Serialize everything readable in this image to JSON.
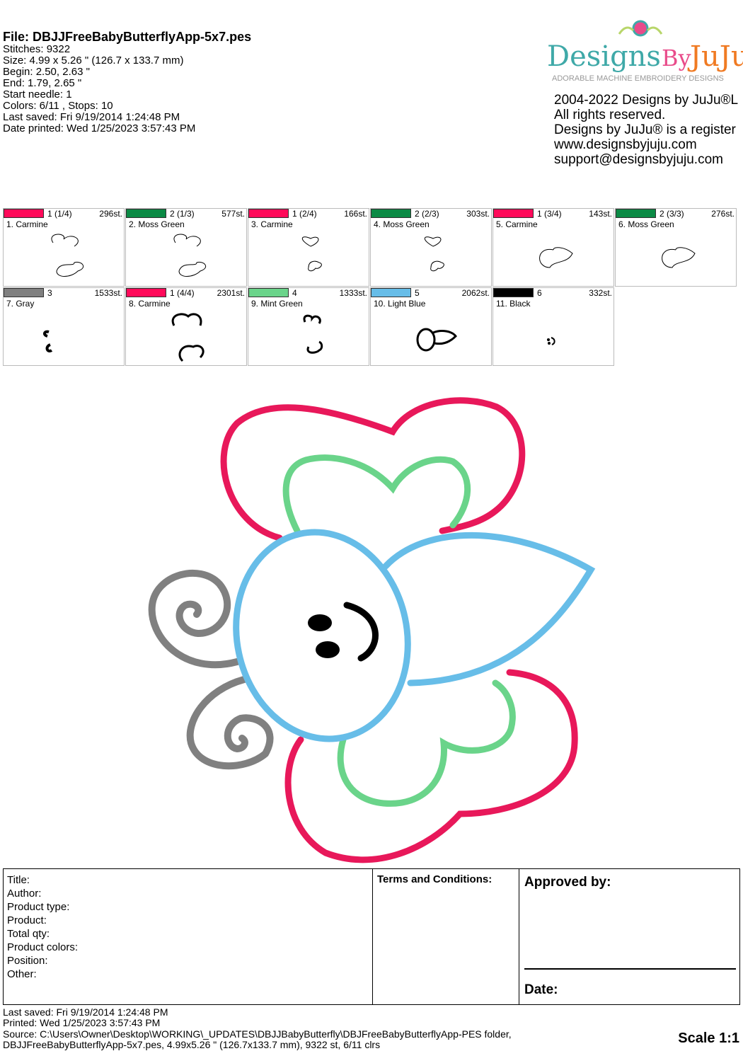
{
  "header": {
    "file": "File: DBJJFreeBabyButterflyApp-5x7.pes",
    "lines": [
      "Stitches: 9322",
      "Size: 4.99 x 5.26 \" (126.7 x 133.7 mm)",
      "Begin: 2.50, 2.63 \"",
      "End: 1.79, 2.65 \"",
      "Start needle: 1",
      "Colors: 6/11 , Stops: 10",
      "Last saved: Fri 9/19/2014 1:24:48 PM",
      "Date printed: Wed 1/25/2023 3:57:43 PM"
    ]
  },
  "logo": {
    "text1": "Designs",
    "text2": "By",
    "text3": "JuJu",
    "tagline": "ADORABLE MACHINE EMBROIDERY DESIGNS",
    "colors": {
      "teal": "#3fa9a8",
      "pink": "#e94b8a",
      "orange": "#f07a22"
    }
  },
  "copyright": [
    "2004-2022 Designs by JuJu®L",
    "All rights reserved.",
    "Designs by JuJu® is a register",
    "www.designsbyjuju.com",
    "support@designsbyjuju.com"
  ],
  "colors": [
    {
      "seq": "1 (1/4)",
      "stitches": "296st.",
      "name": "1. Carmine",
      "hex": "#ff0a5a"
    },
    {
      "seq": "2 (1/3)",
      "stitches": "577st.",
      "name": "2. Moss Green",
      "hex": "#0b8a45"
    },
    {
      "seq": "1 (2/4)",
      "stitches": "166st.",
      "name": "3. Carmine",
      "hex": "#ff0a5a"
    },
    {
      "seq": "2 (2/3)",
      "stitches": "303st.",
      "name": "4. Moss Green",
      "hex": "#0b8a45"
    },
    {
      "seq": "1 (3/4)",
      "stitches": "143st.",
      "name": "5. Carmine",
      "hex": "#ff0a5a"
    },
    {
      "seq": "2 (3/3)",
      "stitches": "276st.",
      "name": "6. Moss Green",
      "hex": "#0b8a45"
    },
    {
      "seq": "3",
      "stitches": "1533st.",
      "name": "7. Gray",
      "hex": "#808080"
    },
    {
      "seq": "1 (4/4)",
      "stitches": "2301st.",
      "name": "8. Carmine",
      "hex": "#ff0a5a"
    },
    {
      "seq": "4",
      "stitches": "1333st.",
      "name": "9. Mint Green",
      "hex": "#6ad48a"
    },
    {
      "seq": "5",
      "stitches": "2062st.",
      "name": "10. Light Blue",
      "hex": "#67bde8"
    },
    {
      "seq": "6",
      "stitches": "332st.",
      "name": "11. Black",
      "hex": "#000000"
    }
  ],
  "form": {
    "fields": [
      "Title:",
      "Author:",
      "Product type:",
      "Product:",
      "Total qty:",
      "Product colors:",
      "Position:",
      "Other:"
    ],
    "terms": "Terms and Conditions:",
    "approved": "Approved by:",
    "date": "Date:"
  },
  "footer": {
    "left1": "Last saved: Fri 9/19/2014 1:24:48 PM",
    "left2": "Printed: Wed 1/25/2023 3:57:43 PM",
    "src1": "Source: C:\\Users\\Owner\\Desktop\\WORKING\\_UPDATES\\DBJJBabyButterfly\\DBJFreeBabyButterflyApp-PES folder,",
    "src2": "DBJJFreeBabyButterflyApp-5x7.pes, 4.99x5.26 \" (126.7x133.7 mm), 9322 st, 6/11 clrs",
    "scale": "Scale 1:1"
  }
}
